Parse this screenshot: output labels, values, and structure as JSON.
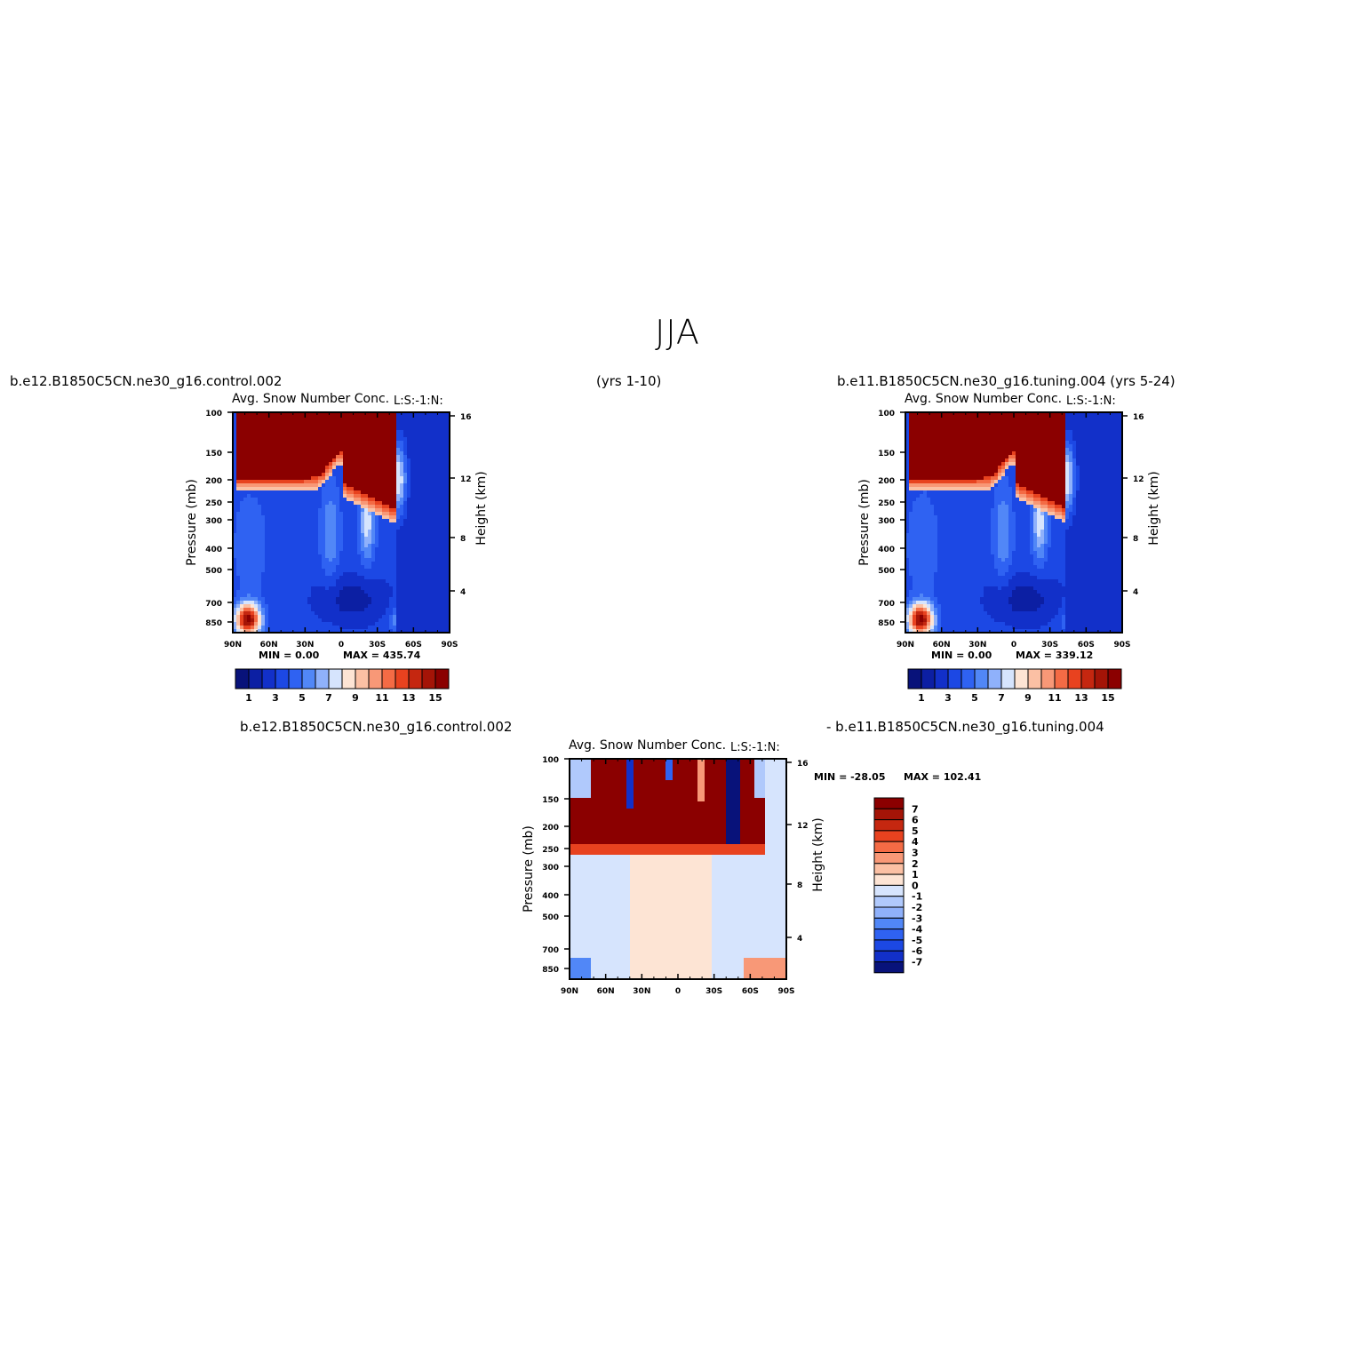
{
  "figure": {
    "title": "JJA",
    "case_a": "b.e12.B1850C5CN.ne30_g16.control.002",
    "case_a_years": "(yrs 1-10)",
    "case_b": "b.e11.B1850C5CN.ne30_g16.tuning.004 (yrs 5-24)",
    "diff_left": "b.e12.B1850C5CN.ne30_g16.control.002",
    "diff_right": "- b.e11.B1850C5CN.ne30_g16.tuning.004"
  },
  "colors": {
    "blues": [
      "#08127a",
      "#0c1fa3",
      "#1230c9",
      "#1c48e4",
      "#2f62f2",
      "#5187f7",
      "#8fb1fb",
      "#d6e4fd"
    ],
    "reds": [
      "#fde4d4",
      "#fbc0a4",
      "#f89877",
      "#f46b45",
      "#e8421f",
      "#c52710",
      "#a41407",
      "#8b0000"
    ]
  },
  "chart_data": [
    {
      "type": "heatmap",
      "title": "Avg. Snow Number Conc.",
      "units": "L:S:-1:N:",
      "ylabel": "Pressure (mb)",
      "ylabel_right": "Height (km)",
      "x_ticks": [
        "90N",
        "60N",
        "30N",
        "0",
        "30S",
        "60S",
        "90S"
      ],
      "y_ticks": [
        "100",
        "150",
        "200",
        "250",
        "300",
        "400",
        "500",
        "700",
        "850"
      ],
      "y_right_ticks": [
        "16",
        "12",
        "8",
        "4"
      ],
      "min_label": "MIN = 0.00",
      "max_label": "MAX = 435.74",
      "min": 0.0,
      "max": 435.74,
      "colorbar_labels": [
        "1",
        "3",
        "5",
        "7",
        "9",
        "11",
        "13",
        "15"
      ]
    },
    {
      "type": "heatmap",
      "title": "Avg. Snow Number Conc.",
      "units": "L:S:-1:N:",
      "ylabel": "Pressure (mb)",
      "ylabel_right": "Height (km)",
      "x_ticks": [
        "90N",
        "60N",
        "30N",
        "0",
        "30S",
        "60S",
        "90S"
      ],
      "y_ticks": [
        "100",
        "150",
        "200",
        "250",
        "300",
        "400",
        "500",
        "700",
        "850"
      ],
      "y_right_ticks": [
        "16",
        "12",
        "8",
        "4"
      ],
      "min_label": "MIN = 0.00",
      "max_label": "MAX = 339.12",
      "min": 0.0,
      "max": 339.12,
      "colorbar_labels": [
        "1",
        "3",
        "5",
        "7",
        "9",
        "11",
        "13",
        "15"
      ]
    },
    {
      "type": "heatmap",
      "title": "Avg. Snow Number Conc.",
      "units": "L:S:-1:N:",
      "ylabel": "Pressure (mb)",
      "ylabel_right": "Height (km)",
      "x_ticks": [
        "90N",
        "60N",
        "30N",
        "0",
        "30S",
        "60S",
        "90S"
      ],
      "y_ticks": [
        "100",
        "150",
        "200",
        "250",
        "300",
        "400",
        "500",
        "700",
        "850"
      ],
      "y_right_ticks": [
        "16",
        "12",
        "8",
        "4"
      ],
      "min_label": "MIN = -28.05",
      "max_label": "MAX = 102.41",
      "min": -28.05,
      "max": 102.41,
      "colorbar_labels": [
        "7",
        "6",
        "5",
        "4",
        "3",
        "2",
        "1",
        "0",
        "-1",
        "-2",
        "-3",
        "-4",
        "-5",
        "-6",
        "-7"
      ]
    }
  ]
}
